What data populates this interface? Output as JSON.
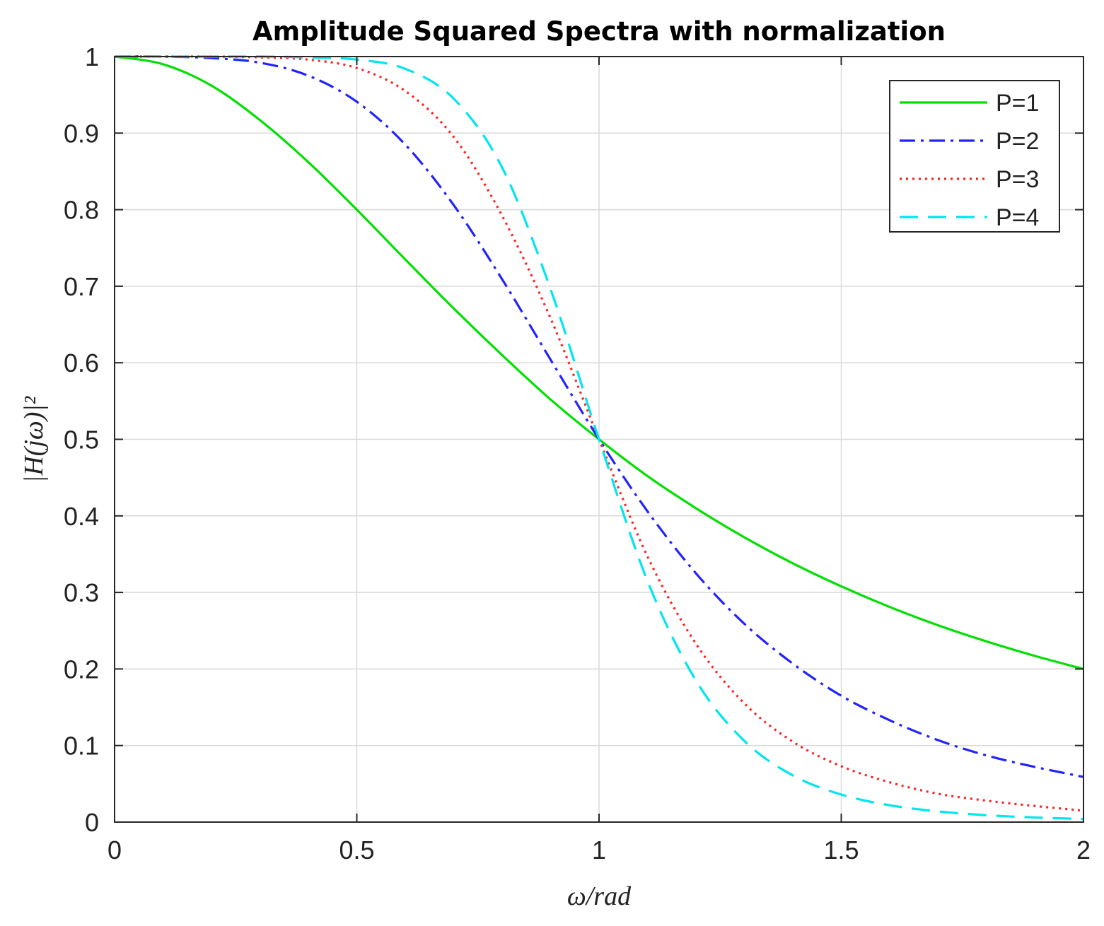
{
  "chart_data": {
    "type": "line",
    "title": "Amplitude Squared Spectra with normalization",
    "xlabel": "ω/rad",
    "ylabel": "|H(jω)|²",
    "xlim": [
      0,
      2
    ],
    "ylim": [
      0,
      1
    ],
    "grid": true,
    "legend_position": "top-right",
    "x_ticks": [
      0,
      0.5,
      1,
      1.5,
      2
    ],
    "x_tick_labels": [
      "0",
      "0.5",
      "1",
      "1.5",
      "2"
    ],
    "y_ticks": [
      0,
      0.1,
      0.2,
      0.3,
      0.4,
      0.5,
      0.6,
      0.7,
      0.8,
      0.9,
      1
    ],
    "y_tick_labels": [
      "0",
      "0.1",
      "0.2",
      "0.3",
      "0.4",
      "0.5",
      "0.6",
      "0.7",
      "0.8",
      "0.9",
      "1"
    ],
    "x": [
      0,
      0.1,
      0.2,
      0.3,
      0.4,
      0.5,
      0.6,
      0.7,
      0.8,
      0.9,
      1.0,
      1.1,
      1.2,
      1.3,
      1.4,
      1.5,
      1.6,
      1.7,
      1.8,
      1.9,
      2.0
    ],
    "series": [
      {
        "name": "P=1",
        "color": "#00e000",
        "dash": "solid",
        "values": [
          1.0,
          0.99,
          0.962,
          0.917,
          0.862,
          0.8,
          0.735,
          0.671,
          0.61,
          0.552,
          0.5,
          0.452,
          0.41,
          0.372,
          0.338,
          0.308,
          0.281,
          0.257,
          0.236,
          0.217,
          0.2
        ]
      },
      {
        "name": "P=2",
        "color": "#2222ff",
        "dash": "dashdot",
        "values": [
          1.0,
          1.0,
          0.998,
          0.992,
          0.975,
          0.941,
          0.885,
          0.806,
          0.709,
          0.604,
          0.5,
          0.406,
          0.325,
          0.259,
          0.207,
          0.165,
          0.133,
          0.107,
          0.087,
          0.072,
          0.059
        ]
      },
      {
        "name": "P=3",
        "color": "#ff2222",
        "dash": "dotted",
        "values": [
          1.0,
          1.0,
          1.0,
          0.999,
          0.996,
          0.985,
          0.955,
          0.895,
          0.792,
          0.658,
          0.5,
          0.347,
          0.233,
          0.155,
          0.105,
          0.073,
          0.052,
          0.037,
          0.028,
          0.021,
          0.015
        ]
      },
      {
        "name": "P=4",
        "color": "#00e5ee",
        "dash": "dashed",
        "values": [
          1.0,
          1.0,
          1.0,
          1.0,
          0.999,
          0.996,
          0.984,
          0.945,
          0.855,
          0.696,
          0.5,
          0.315,
          0.185,
          0.106,
          0.061,
          0.036,
          0.022,
          0.014,
          0.009,
          0.006,
          0.004
        ]
      }
    ]
  }
}
